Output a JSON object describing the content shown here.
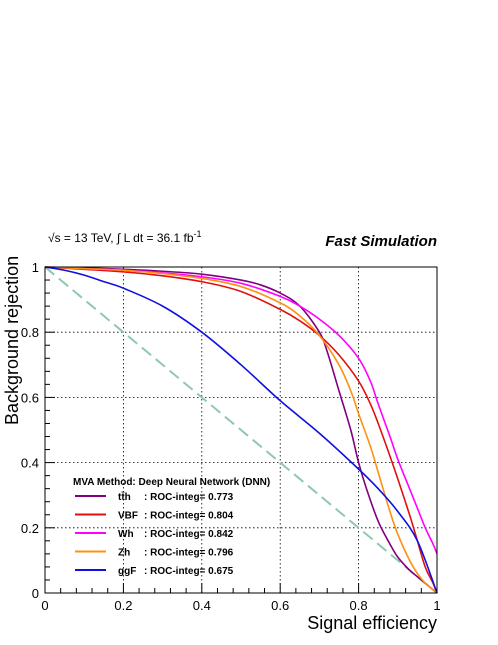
{
  "chart_data": {
    "type": "line",
    "title": "",
    "xlabel": "Signal efficiency",
    "ylabel": "Background rejection",
    "xlim": [
      0,
      1
    ],
    "ylim": [
      0,
      1
    ],
    "xticks": [
      "0",
      "0.2",
      "0.4",
      "0.6",
      "0.8",
      "1"
    ],
    "yticks": [
      "0",
      "0.2",
      "0.4",
      "0.6",
      "0.8",
      "1"
    ],
    "grid": true,
    "legend_placement": "bottom-left",
    "header": {
      "energy": "√s = 13 TeV, ∫ L dt = 36.1 fb",
      "energy_exp": "-1",
      "fast_sim": "Fast Simulation"
    },
    "legend_title": "MVA Method:  Deep Neural Network (DNN)",
    "reference_line": {
      "color": "#8fc8b0",
      "x": [
        0,
        1
      ],
      "y": [
        1,
        0
      ]
    },
    "series": [
      {
        "name": "tt̄h",
        "roc_label": ": ROC-integ= 0.773",
        "color": "#800080",
        "x": [
          0,
          0.1,
          0.2,
          0.3,
          0.4,
          0.5,
          0.55,
          0.6,
          0.65,
          0.7,
          0.72,
          0.75,
          0.78,
          0.8,
          0.82,
          0.85,
          0.88,
          0.9,
          0.93,
          0.95,
          0.98,
          1.0
        ],
        "y": [
          1.0,
          0.997,
          0.993,
          0.987,
          0.978,
          0.96,
          0.945,
          0.92,
          0.88,
          0.8,
          0.74,
          0.62,
          0.5,
          0.4,
          0.32,
          0.22,
          0.15,
          0.11,
          0.07,
          0.05,
          0.02,
          0.0
        ]
      },
      {
        "name": "VBF",
        "roc_label": ": ROC-integ= 0.804",
        "color": "#e01010",
        "x": [
          0,
          0.1,
          0.2,
          0.3,
          0.4,
          0.5,
          0.6,
          0.65,
          0.7,
          0.75,
          0.8,
          0.83,
          0.85,
          0.88,
          0.9,
          0.93,
          0.95,
          0.97,
          0.99,
          1.0
        ],
        "y": [
          1.0,
          0.993,
          0.985,
          0.973,
          0.955,
          0.925,
          0.87,
          0.835,
          0.79,
          0.73,
          0.65,
          0.58,
          0.52,
          0.42,
          0.35,
          0.24,
          0.16,
          0.08,
          0.03,
          0.0
        ]
      },
      {
        "name": "Wh",
        "roc_label": ": ROC-integ= 0.842",
        "color": "#ff00ff",
        "x": [
          0,
          0.1,
          0.2,
          0.3,
          0.4,
          0.5,
          0.6,
          0.65,
          0.7,
          0.75,
          0.8,
          0.83,
          0.85,
          0.88,
          0.9,
          0.93,
          0.95,
          0.97,
          0.99,
          1.0
        ],
        "y": [
          1.0,
          0.995,
          0.99,
          0.982,
          0.97,
          0.95,
          0.91,
          0.88,
          0.84,
          0.79,
          0.72,
          0.65,
          0.58,
          0.48,
          0.41,
          0.32,
          0.26,
          0.2,
          0.15,
          0.12
        ]
      },
      {
        "name": "Zh",
        "roc_label": ": ROC-integ= 0.796",
        "color": "#ff9010",
        "x": [
          0,
          0.1,
          0.2,
          0.3,
          0.4,
          0.5,
          0.6,
          0.65,
          0.7,
          0.75,
          0.78,
          0.8,
          0.83,
          0.85,
          0.88,
          0.9,
          0.93,
          0.95,
          0.97,
          0.99,
          1.0
        ],
        "y": [
          1.0,
          0.995,
          0.99,
          0.98,
          0.965,
          0.94,
          0.89,
          0.85,
          0.79,
          0.7,
          0.62,
          0.55,
          0.45,
          0.37,
          0.25,
          0.18,
          0.1,
          0.06,
          0.03,
          0.01,
          0.0
        ]
      },
      {
        "name": "ggF",
        "roc_label": ": ROC-integ= 0.675",
        "color": "#1010e0",
        "x": [
          0,
          0.05,
          0.1,
          0.15,
          0.2,
          0.3,
          0.4,
          0.5,
          0.6,
          0.7,
          0.8,
          0.85,
          0.9,
          0.95,
          1.0
        ],
        "y": [
          1.0,
          0.99,
          0.975,
          0.955,
          0.935,
          0.88,
          0.8,
          0.7,
          0.59,
          0.49,
          0.38,
          0.32,
          0.25,
          0.16,
          0.0
        ]
      }
    ]
  }
}
